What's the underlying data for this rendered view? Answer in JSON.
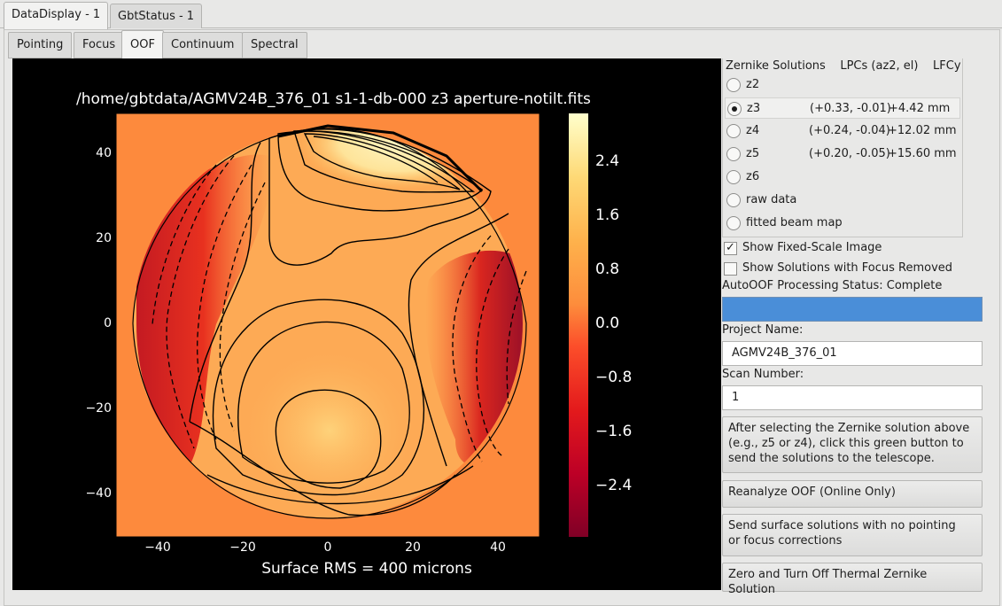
{
  "window_tabs": [
    {
      "label": "DataDisplay - 1",
      "active": true
    },
    {
      "label": "GbtStatus - 1",
      "active": false
    }
  ],
  "sub_tabs": [
    {
      "label": "Pointing",
      "active": false
    },
    {
      "label": "Focus",
      "active": false
    },
    {
      "label": "OOF",
      "active": true
    },
    {
      "label": "Continuum",
      "active": false
    },
    {
      "label": "Spectral Line",
      "active": false
    }
  ],
  "plot": {
    "title": "/home/gbtdata/AGMV24B_376_01 s1-1-db-000 z3 aperture-notilt.fits",
    "x_ticks": [
      "−40",
      "−20",
      "0",
      "20",
      "40"
    ],
    "y_ticks": [
      "40",
      "20",
      "0",
      "−20",
      "−40"
    ],
    "colorbar_ticks": [
      "2.4",
      "1.6",
      "0.8",
      "0.0",
      "−0.8",
      "−1.6",
      "−2.4"
    ],
    "xlim": [
      -50,
      50
    ],
    "ylim": [
      -50,
      50
    ],
    "colorbar_range": [
      -3.3,
      3.4
    ],
    "colormap": "YlOrRd (reversed)",
    "rms_label": "Surface RMS = 400 microns"
  },
  "zernike": {
    "header": {
      "solutions": "Zernike Solutions",
      "lpcs": "LPCs (az2, el)",
      "lfcy": "LFCy"
    },
    "options": [
      {
        "label": "z2",
        "lpcs": "",
        "lfcy": "",
        "selected": false
      },
      {
        "label": "z3",
        "lpcs": "(+0.33, -0.01)",
        "lfcy": "+4.42 mm",
        "selected": true
      },
      {
        "label": "z4",
        "lpcs": "(+0.24, -0.04)",
        "lfcy": "+12.02 mm",
        "selected": false
      },
      {
        "label": "z5",
        "lpcs": "(+0.20, -0.05)",
        "lfcy": "+15.60 mm",
        "selected": false
      },
      {
        "label": "z6",
        "lpcs": "",
        "lfcy": "",
        "selected": false
      },
      {
        "label": "raw data",
        "lpcs": "",
        "lfcy": "",
        "selected": false
      },
      {
        "label": "fitted beam map",
        "lpcs": "",
        "lfcy": "",
        "selected": false
      }
    ]
  },
  "checks": {
    "fixed_scale": {
      "label": "Show Fixed-Scale Image",
      "checked": true
    },
    "focus_removed": {
      "label": "Show Solutions with Focus Removed",
      "checked": false
    }
  },
  "status": {
    "label": "AutoOOF Processing Status: Complete",
    "progress": 1.0,
    "bar_color": "#4a8ed8"
  },
  "project": {
    "label": "Project Name:",
    "value": "AGMV24B_376_01"
  },
  "scan": {
    "label": "Scan Number:",
    "value": "1"
  },
  "buttons": {
    "send_solutions": "After selecting the Zernike solution above\n (e.g., z5 or z4), click this green button to\n send the solutions to the telescope.",
    "reanalyze": "Reanalyze OOF (Online Only)",
    "send_surface": "Send surface solutions with no pointing\n or focus corrections",
    "zero_thermal": "Zero and Turn Off Thermal Zernike Solution"
  }
}
